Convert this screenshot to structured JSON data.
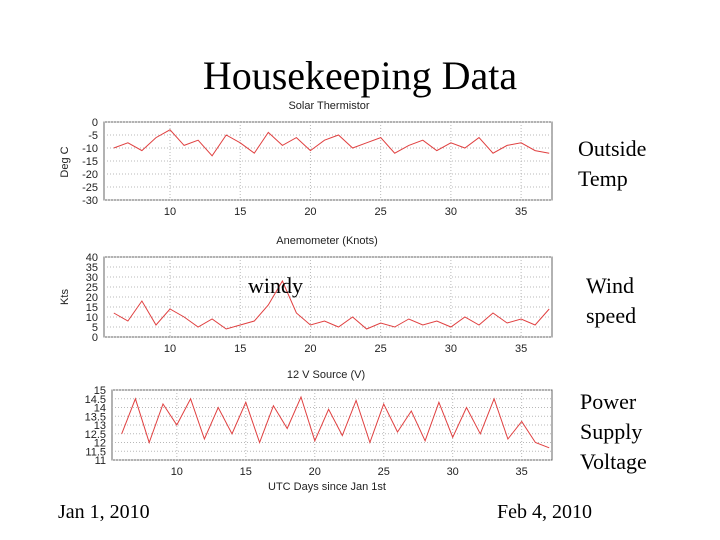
{
  "slide": {
    "title": "Housekeeping Data",
    "labels": {
      "outside_temp": "Outside\nTemp",
      "wind_speed": "Wind\nspeed",
      "power_supply": "Power\nSupply\nVoltage",
      "windy": "windy",
      "start_date": "Jan 1, 2010",
      "end_date": "Feb 4, 2010"
    }
  },
  "colors": {
    "series": "#e04040",
    "grid": "#b8b8b8",
    "frame": "#666666"
  },
  "chart_data": [
    {
      "type": "line",
      "title": "Solar Thermistor",
      "ylabel": "Deg C",
      "xlim": [
        5.3,
        37.2
      ],
      "ylim": [
        -30,
        0
      ],
      "xticks": [
        10,
        15,
        20,
        25,
        30,
        35
      ],
      "yticks": [
        0,
        -5,
        -10,
        -15,
        -20,
        -25,
        -30
      ],
      "grid": true,
      "x": [
        6,
        7,
        8,
        9,
        10,
        11,
        12,
        13,
        14,
        15,
        16,
        17,
        18,
        19,
        20,
        21,
        22,
        23,
        24,
        25,
        26,
        27,
        28,
        29,
        30,
        31,
        32,
        33,
        34,
        35,
        36,
        37
      ],
      "y": [
        -10,
        -8,
        -11,
        -6,
        -3,
        -9,
        -7,
        -13,
        -5,
        -8,
        -12,
        -4,
        -9,
        -6,
        -11,
        -7,
        -5,
        -10,
        -8,
        -6,
        -12,
        -9,
        -7,
        -11,
        -8,
        -10,
        -6,
        -12,
        -9,
        -8,
        -11,
        -12
      ]
    },
    {
      "type": "line",
      "title": "Anemometer (Knots)",
      "ylabel": "Kts",
      "xlim": [
        5.3,
        37.2
      ],
      "ylim": [
        0,
        40
      ],
      "xticks": [
        10,
        15,
        20,
        25,
        30,
        35
      ],
      "yticks": [
        40,
        35,
        30,
        25,
        20,
        15,
        10,
        5,
        0
      ],
      "grid": true,
      "x": [
        6,
        7,
        8,
        9,
        10,
        11,
        12,
        13,
        14,
        15,
        16,
        17,
        18,
        19,
        20,
        21,
        22,
        23,
        24,
        25,
        26,
        27,
        28,
        29,
        30,
        31,
        32,
        33,
        34,
        35,
        36,
        37
      ],
      "y": [
        12,
        8,
        18,
        6,
        14,
        10,
        5,
        9,
        4,
        6,
        8,
        16,
        28,
        12,
        6,
        8,
        5,
        10,
        4,
        7,
        5,
        9,
        6,
        8,
        5,
        10,
        6,
        12,
        7,
        9,
        6,
        14
      ]
    },
    {
      "type": "line",
      "title": "12 V Source (V)",
      "ylabel": "",
      "xlabel": "UTC Days since Jan 1st",
      "xlim": [
        5.3,
        37.2
      ],
      "ylim": [
        11,
        15
      ],
      "xticks": [
        10,
        15,
        20,
        25,
        30,
        35
      ],
      "yticks": [
        15,
        14.5,
        14,
        13.5,
        13,
        12.5,
        12,
        11.5,
        11
      ],
      "grid": true,
      "x": [
        6,
        7,
        8,
        9,
        10,
        11,
        12,
        13,
        14,
        15,
        16,
        17,
        18,
        19,
        20,
        21,
        22,
        23,
        24,
        25,
        26,
        27,
        28,
        29,
        30,
        31,
        32,
        33,
        34,
        35,
        36,
        37
      ],
      "y": [
        12.5,
        14.5,
        12.0,
        14.2,
        13.0,
        14.5,
        12.2,
        14.0,
        12.5,
        14.3,
        12.0,
        14.1,
        12.8,
        14.6,
        12.1,
        13.9,
        12.4,
        14.4,
        12.0,
        14.2,
        12.6,
        13.8,
        12.1,
        14.3,
        12.3,
        14.0,
        12.5,
        14.5,
        12.2,
        13.2,
        12.0,
        11.7
      ]
    }
  ]
}
